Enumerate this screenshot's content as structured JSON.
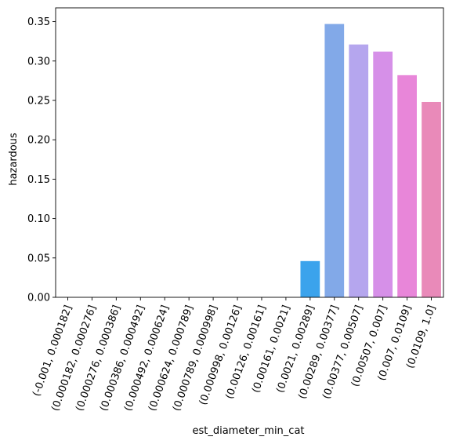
{
  "chart_data": {
    "type": "bar",
    "xlabel": "est_diameter_min_cat",
    "ylabel": "hazardous",
    "ylim": [
      0,
      0.35
    ],
    "yticks": [
      "0.00",
      "0.05",
      "0.10",
      "0.15",
      "0.20",
      "0.25",
      "0.30",
      "0.35"
    ],
    "categories": [
      "(-0.001, 0.000182]",
      "(0.000182, 0.000276]",
      "(0.000276, 0.000386]",
      "(0.000386, 0.000492]",
      "(0.000492, 0.000624]",
      "(0.000624, 0.000789]",
      "(0.000789, 0.000998]",
      "(0.000998, 0.00126]",
      "(0.00126, 0.00161]",
      "(0.00161, 0.0021]",
      "(0.0021, 0.00289]",
      "(0.00289, 0.00377]",
      "(0.00377, 0.00507]",
      "(0.00507, 0.007]",
      "(0.007, 0.0109]",
      "(0.0109, 1.0]"
    ],
    "values": [
      0,
      0,
      0,
      0,
      0,
      0,
      0,
      0,
      0,
      0,
      0.046,
      0.347,
      0.321,
      0.312,
      0.282,
      0.248
    ],
    "colors": [
      "#f77189",
      "#f7754f",
      "#dd8a31",
      "#c39532",
      "#ae9d31",
      "#97a431",
      "#77ab31",
      "#33b07a",
      "#35ad9c",
      "#37abb4",
      "#3ba3ec",
      "#82a9e8",
      "#b5a6ee",
      "#d690e8",
      "#e886d9",
      "#e98ab9"
    ],
    "grid": false,
    "legend": "none"
  }
}
